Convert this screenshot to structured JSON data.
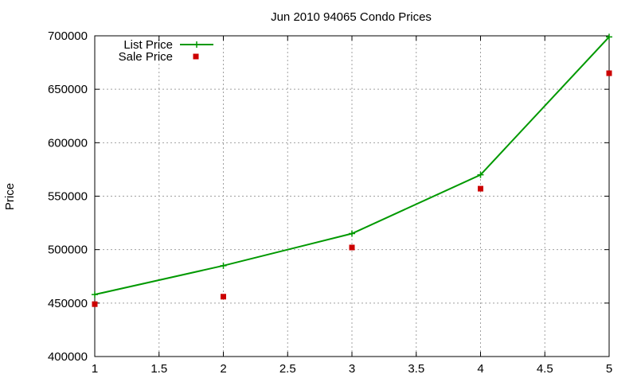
{
  "chart_data": {
    "type": "line",
    "title": "Jun 2010 94065 Condo Prices",
    "xlabel": "",
    "ylabel": "Price",
    "xlim": [
      1,
      5
    ],
    "ylim": [
      400000,
      700000
    ],
    "x_ticks": [
      "1",
      "1.5",
      "2",
      "2.5",
      "3",
      "3.5",
      "4",
      "4.5",
      "5"
    ],
    "y_ticks": [
      "400000",
      "450000",
      "500000",
      "550000",
      "600000",
      "650000",
      "700000"
    ],
    "grid": true,
    "legend_position": "top-left",
    "series": [
      {
        "name": "List Price",
        "style": "line-with-plus-markers",
        "color": "#009900",
        "x": [
          1,
          2,
          3,
          4,
          5
        ],
        "values": [
          458000,
          485000,
          515000,
          570000,
          699000
        ]
      },
      {
        "name": "Sale Price",
        "style": "square-markers",
        "color": "#cc0000",
        "x": [
          1,
          2,
          3,
          4,
          5
        ],
        "values": [
          449000,
          456000,
          502000,
          557000,
          665000
        ]
      }
    ]
  }
}
